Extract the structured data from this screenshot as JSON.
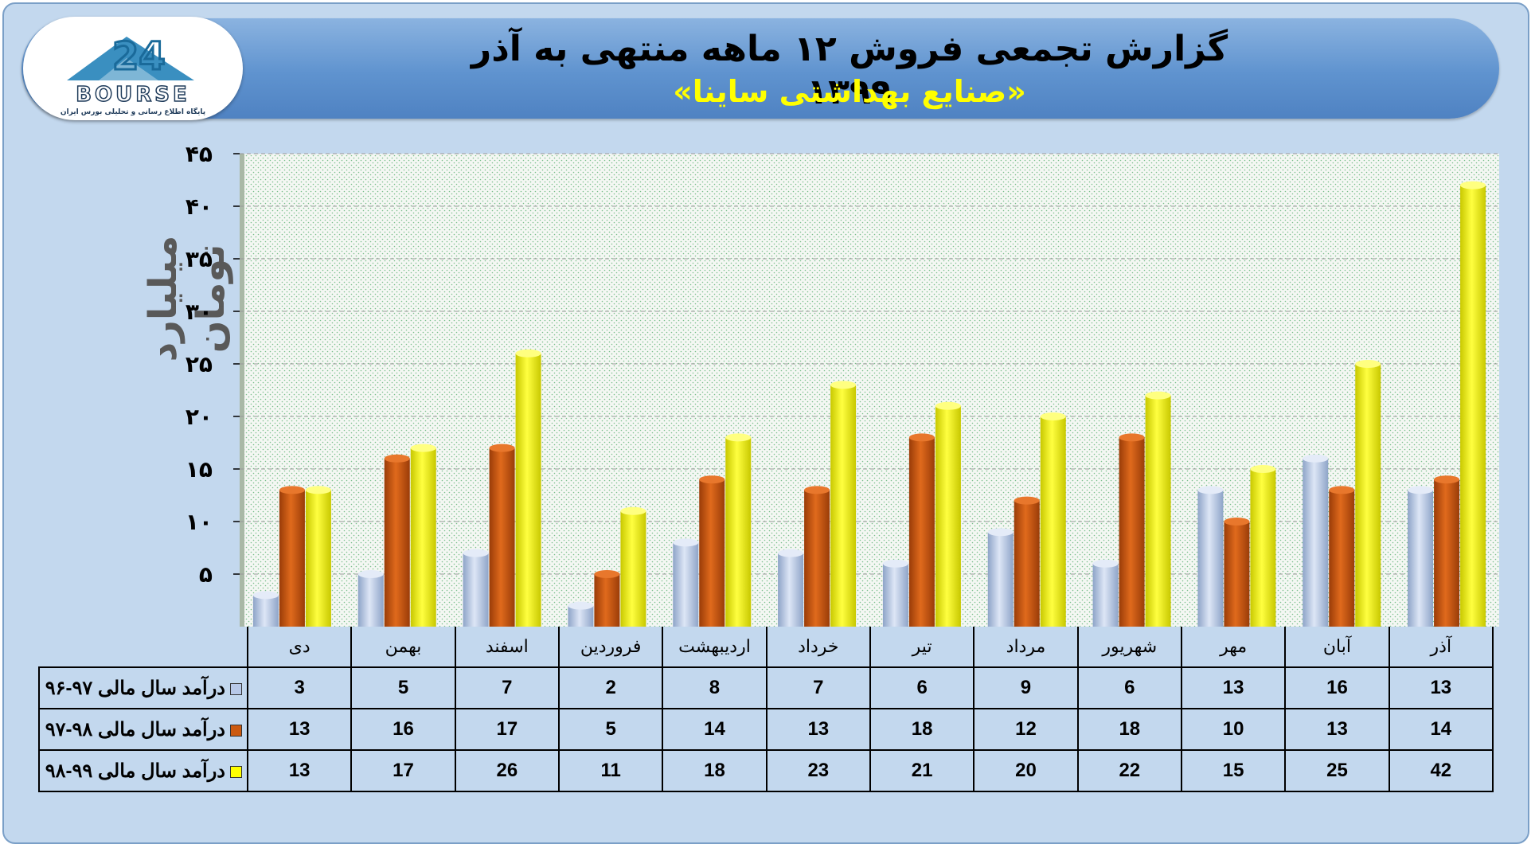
{
  "header": {
    "title": "گزارش تجمعی فروش ۱۲ ماهه منتهی به آذر ۱۳۹۹",
    "subtitle": "«صنایع بهداشتی ساینا»"
  },
  "logo": {
    "brand": "BOURSE",
    "tagline": "پایگاه اطلاع رسانی و تحلیلی بورس ایران"
  },
  "colors": {
    "series1": "#b8c9e8",
    "series2": "#cc5a10",
    "series3": "#ffff00",
    "plot_bg": "#f3f6f2",
    "grid": "#999999"
  },
  "chart_data": {
    "type": "bar",
    "ylabel": "میلیارد تومان",
    "ylim": [
      0,
      45
    ],
    "yticks": [
      "۵",
      "۱۰",
      "۱۵",
      "۲۰",
      "۲۵",
      "۳۰",
      "۳۵",
      "۴۰",
      "۴۵"
    ],
    "grid": true,
    "categories": [
      "آذر",
      "آبان",
      "مهر",
      "شهریور",
      "مرداد",
      "تیر",
      "خرداد",
      "اردیبهشت",
      "فروردین",
      "اسفند",
      "بهمن",
      "دی"
    ],
    "series": [
      {
        "name": "درآمد سال مالی ۹۷-۹۶",
        "values": [
          13,
          16,
          13,
          6,
          9,
          6,
          7,
          8,
          2,
          7,
          5,
          3
        ]
      },
      {
        "name": "درآمد سال مالی ۹۸-۹۷",
        "values": [
          14,
          13,
          10,
          18,
          12,
          18,
          13,
          14,
          5,
          17,
          16,
          13
        ]
      },
      {
        "name": "درآمد سال مالی ۹۹-۹۸",
        "values": [
          42,
          25,
          15,
          22,
          20,
          21,
          23,
          18,
          11,
          26,
          17,
          13
        ]
      }
    ]
  }
}
